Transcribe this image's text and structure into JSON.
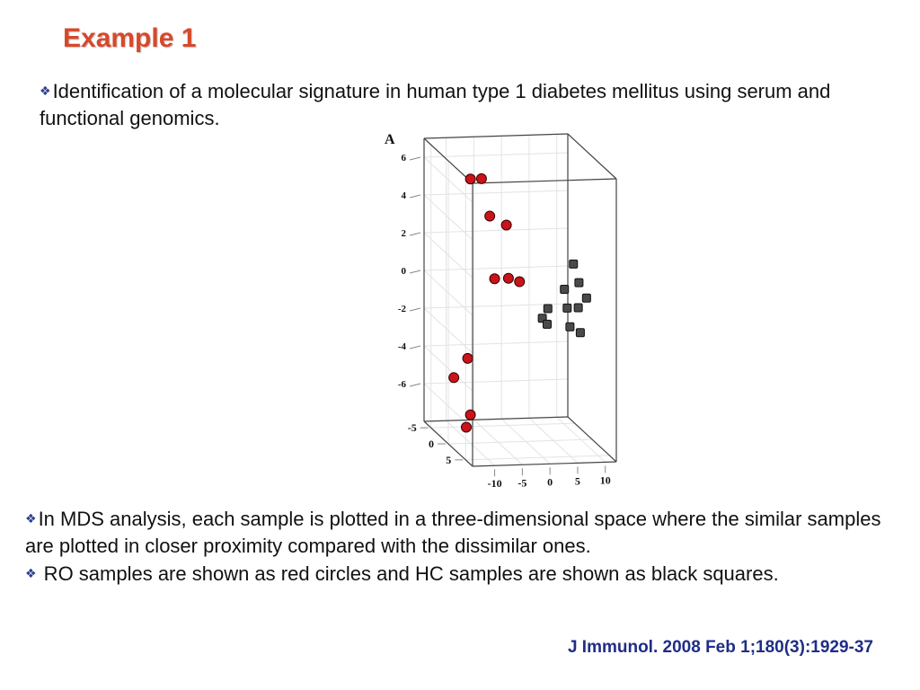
{
  "slide": {
    "title": "Example 1",
    "bullet_icon": "diamond-bullet-icon",
    "intro_text": "Identification of a molecular signature in human type 1 diabetes mellitus using serum and functional genomics.",
    "notes": [
      "In MDS analysis, each sample is plotted in a three-dimensional space where the similar samples are plotted in closer proximity compared with the dissimilar ones.",
      " RO samples are shown as red circles and HC samples are shown as black squares."
    ],
    "citation": "J Immunol. 2008 Feb 1;180(3):1929-37",
    "colors": {
      "title": "#d8482a",
      "citation": "#1f2d87",
      "ro": "#c8141a",
      "hc": "#4a4a4a"
    }
  },
  "chart_data": {
    "type": "scatter",
    "projection": "3d",
    "panel_label": "A",
    "z_ticks": [
      "6",
      "4",
      "2",
      "0",
      "-2",
      "-4",
      "-6"
    ],
    "x_ticks": [
      "-10",
      "-5",
      "0",
      "5",
      "10"
    ],
    "y_ticks": [
      "5",
      "0",
      "-5"
    ],
    "series": [
      {
        "marker": "circle",
        "color": "#c8141a",
        "points": [
          {
            "x": -10,
            "y": 0,
            "z": 6
          },
          {
            "x": -8,
            "y": 0,
            "z": 6
          },
          {
            "x": -6.5,
            "y": 0,
            "z": 4
          },
          {
            "x": -3.5,
            "y": 0,
            "z": 3.5
          },
          {
            "x": -5,
            "y": -1,
            "z": 0.5
          },
          {
            "x": -2.5,
            "y": -1,
            "z": 0.5
          },
          {
            "x": -0.5,
            "y": -1,
            "z": 0.3
          },
          {
            "x": -13,
            "y": 0,
            "z": -4.5
          },
          {
            "x": -10.5,
            "y": 0,
            "z": -3.5
          },
          {
            "x": -10,
            "y": 0,
            "z": -6.5
          },
          {
            "x": -9.5,
            "y": -2,
            "z": -7.5
          }
        ]
      },
      {
        "marker": "square",
        "color": "#4a4a4a",
        "points": [
          {
            "x": 3,
            "y": 0,
            "z": -1.5
          },
          {
            "x": 4,
            "y": 0,
            "z": -1
          },
          {
            "x": 4.5,
            "y": -1,
            "z": -2
          },
          {
            "x": 7,
            "y": 0,
            "z": 0
          },
          {
            "x": 8,
            "y": 1,
            "z": 1.5
          },
          {
            "x": 9,
            "y": 1,
            "z": 0.5
          },
          {
            "x": 7.5,
            "y": 0,
            "z": -1
          },
          {
            "x": 8,
            "y": 0,
            "z": -2
          },
          {
            "x": 9.5,
            "y": 0,
            "z": -1
          },
          {
            "x": 11,
            "y": 0,
            "z": -0.5
          },
          {
            "x": 10.5,
            "y": -1,
            "z": -2.5
          }
        ]
      }
    ]
  }
}
